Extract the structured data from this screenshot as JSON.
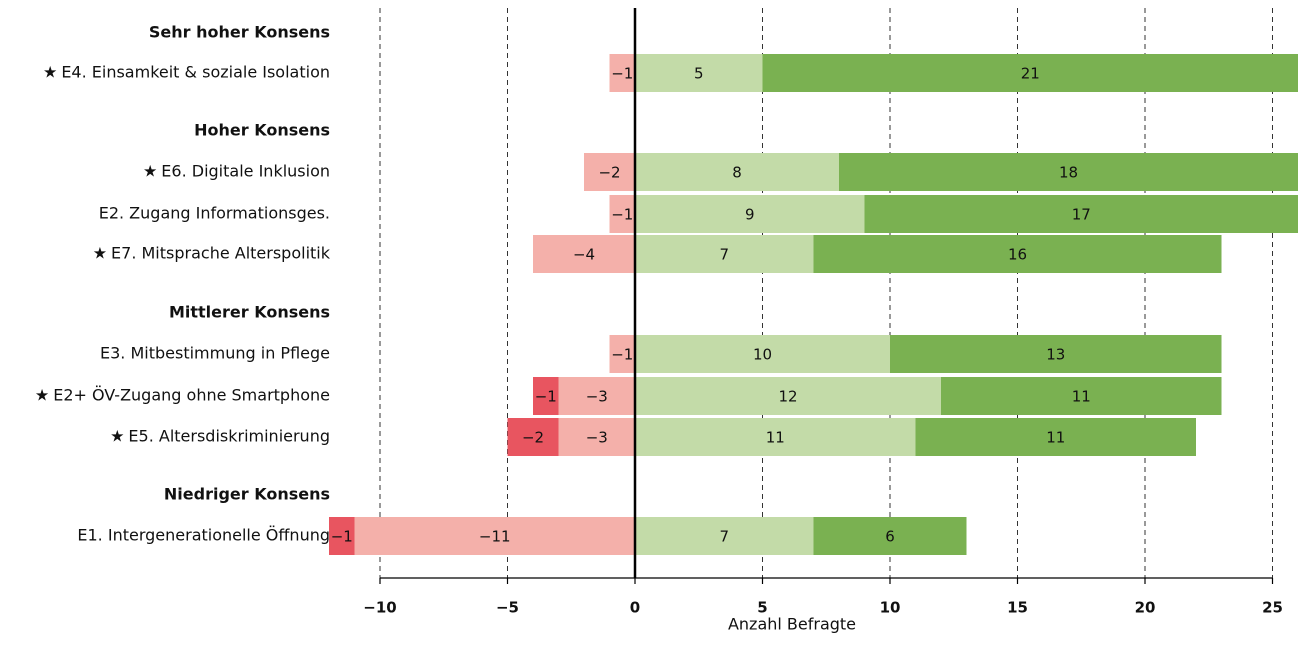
{
  "chart_data": {
    "type": "bar",
    "orientation": "horizontal",
    "stacking": "diverging",
    "xlabel": "Anzahl Befragte",
    "xlim": [
      -11,
      26
    ],
    "xticks": [
      -10,
      -5,
      0,
      5,
      10,
      15,
      20,
      25
    ],
    "grid": "vertical dashed",
    "marker_symbol": "★",
    "colors": {
      "strong_negative": "#e85560",
      "negative": "#f4b0aa",
      "positive": "#c3dba8",
      "strong_positive": "#7ab151",
      "zero_line": "#000000"
    },
    "rows": [
      {
        "kind": "group",
        "label": "Sehr hoher Konsens"
      },
      {
        "kind": "item",
        "label": "E4. Einsamkeit & soziale Isolation",
        "starred": true,
        "strong_negative": 0,
        "negative": 1,
        "positive": 5,
        "strong_positive": 21
      },
      {
        "kind": "group",
        "label": "Hoher Konsens"
      },
      {
        "kind": "item",
        "label": "E6. Digitale Inklusion",
        "starred": true,
        "strong_negative": 0,
        "negative": 2,
        "positive": 8,
        "strong_positive": 18
      },
      {
        "kind": "item",
        "label": "E2. Zugang Informationsges.",
        "starred": false,
        "strong_negative": 0,
        "negative": 1,
        "positive": 9,
        "strong_positive": 17
      },
      {
        "kind": "item",
        "label": "E7. Mitsprache Alterspolitik",
        "starred": true,
        "strong_negative": 0,
        "negative": 4,
        "positive": 7,
        "strong_positive": 16
      },
      {
        "kind": "group",
        "label": "Mittlerer Konsens"
      },
      {
        "kind": "item",
        "label": "E3. Mitbestimmung in Pflege",
        "starred": false,
        "strong_negative": 0,
        "negative": 1,
        "positive": 10,
        "strong_positive": 13
      },
      {
        "kind": "item",
        "label": "E2+ ÖV-Zugang ohne Smartphone",
        "starred": true,
        "strong_negative": 1,
        "negative": 3,
        "positive": 12,
        "strong_positive": 11
      },
      {
        "kind": "item",
        "label": "E5. Altersdiskriminierung",
        "starred": true,
        "strong_negative": 2,
        "negative": 3,
        "positive": 11,
        "strong_positive": 11
      },
      {
        "kind": "group",
        "label": "Niedriger Konsens"
      },
      {
        "kind": "item",
        "label": "E1. Intergenerationelle Öffnung",
        "starred": false,
        "strong_negative": 1,
        "negative": 11,
        "positive": 7,
        "strong_positive": 6
      }
    ]
  }
}
